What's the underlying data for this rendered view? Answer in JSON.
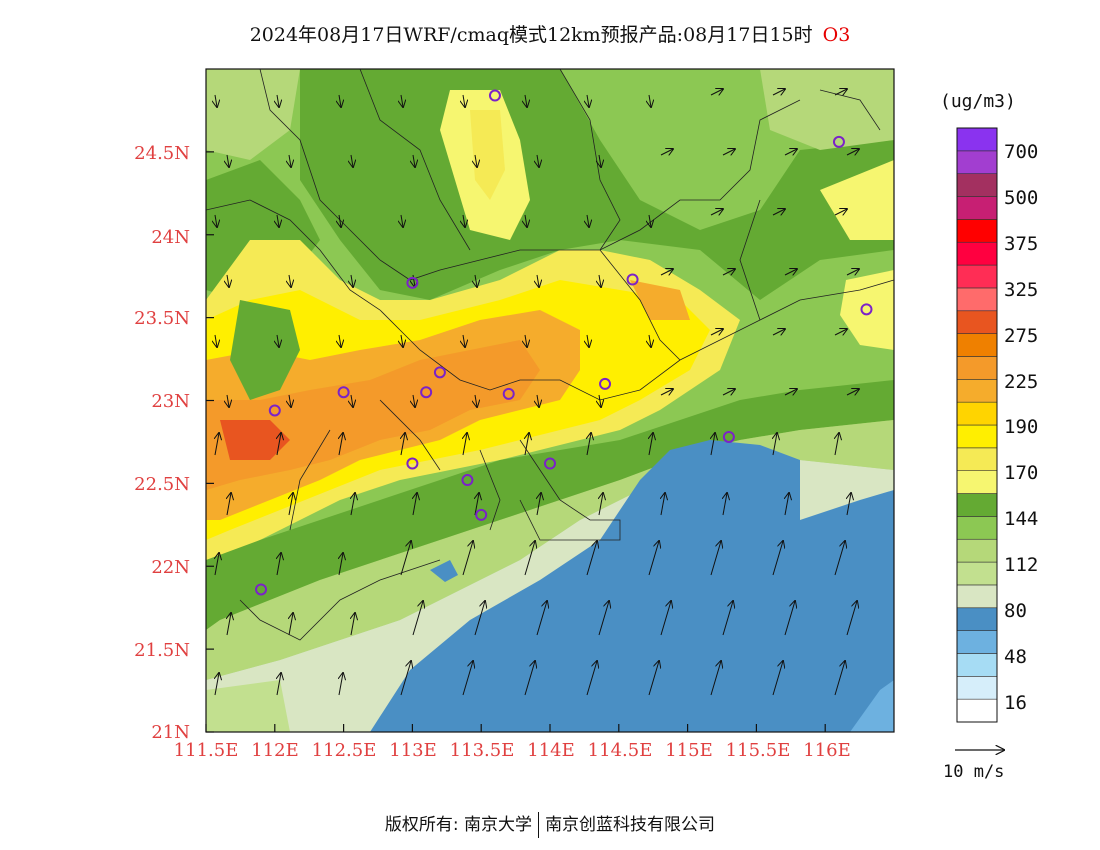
{
  "title": {
    "main": "2024年08月17日WRF/cmaq模式12km预报产品:08月17日15时",
    "species": "O3"
  },
  "axes": {
    "lat_labels": [
      "24.5N",
      "24N",
      "23.5N",
      "23N",
      "22.5N",
      "22N",
      "21.5N",
      "21N"
    ],
    "lon_labels": [
      "111.5E",
      "112E",
      "112.5E",
      "113E",
      "113.5E",
      "114E",
      "114.5E",
      "115E",
      "115.5E",
      "116E"
    ],
    "lon_range": [
      111.5,
      116.5
    ],
    "lat_range": [
      21.0,
      25.0
    ]
  },
  "legend": {
    "unit": "(ug/m3)",
    "labels": [
      "700",
      "500",
      "375",
      "325",
      "275",
      "225",
      "190",
      "170",
      "144",
      "112",
      "80",
      "48",
      "16"
    ],
    "colors": [
      "#ffffff",
      "#d6eefa",
      "#a6dcf4",
      "#6db1e0",
      "#4a8fc4",
      "#d9e6c3",
      "#c2e08f",
      "#b5d879",
      "#8cc853",
      "#64aa33",
      "#f6f670",
      "#f5ea55",
      "#ffef00",
      "#ffd400",
      "#f5ac2c",
      "#f49a2a",
      "#ef8000",
      "#e85520",
      "#ff6b6b",
      "#ff2d55",
      "#ff0040",
      "#ff0000",
      "#c71f73",
      "#a33060",
      "#a23ed0",
      "#8a33ef"
    ],
    "wind_scale_label": "10 m/s"
  },
  "stations": [
    {
      "lon": 113.6,
      "lat": 24.84
    },
    {
      "lon": 116.1,
      "lat": 24.56
    },
    {
      "lon": 113.0,
      "lat": 23.71
    },
    {
      "lon": 114.6,
      "lat": 23.73
    },
    {
      "lon": 116.3,
      "lat": 23.55
    },
    {
      "lon": 112.5,
      "lat": 23.05
    },
    {
      "lon": 113.2,
      "lat": 23.17
    },
    {
      "lon": 113.1,
      "lat": 23.05
    },
    {
      "lon": 113.7,
      "lat": 23.04
    },
    {
      "lon": 114.4,
      "lat": 23.1
    },
    {
      "lon": 112.0,
      "lat": 22.94
    },
    {
      "lon": 115.3,
      "lat": 22.78
    },
    {
      "lon": 113.0,
      "lat": 22.62
    },
    {
      "lon": 113.4,
      "lat": 22.52
    },
    {
      "lon": 114.0,
      "lat": 22.62
    },
    {
      "lon": 113.5,
      "lat": 22.31
    },
    {
      "lon": 111.9,
      "lat": 21.86
    }
  ],
  "footer": {
    "left": "版权所有: 南京大学",
    "right": "南京创蓝科技有限公司"
  }
}
